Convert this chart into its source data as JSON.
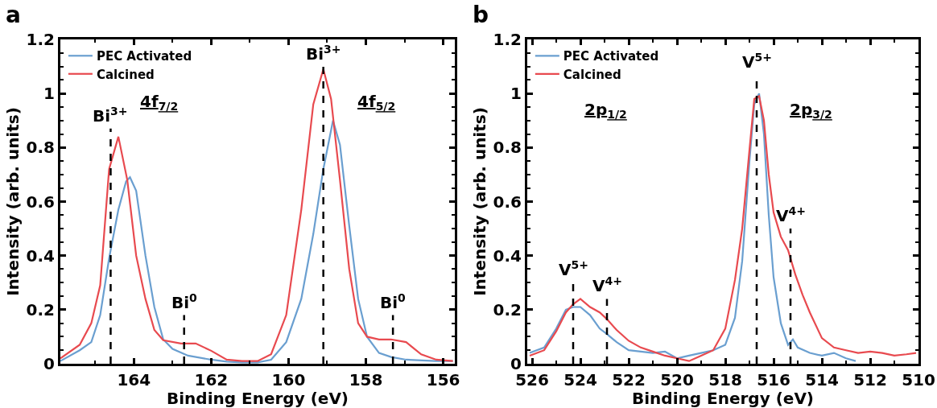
{
  "chart_data": [
    {
      "type": "line",
      "xlabel": "Binding Energy (eV)",
      "ylabel": "Intensity (arb. units)",
      "xlim": [
        165.9,
        155.7
      ],
      "ylim": [
        0,
        1.2
      ],
      "xticks": [
        164,
        162,
        160,
        158,
        156
      ],
      "yticks": [
        0,
        0.2,
        0.4,
        0.6,
        0.8,
        1,
        1.2
      ],
      "legend": "top left",
      "series": [
        {
          "name": "PEC Activated",
          "color": "#6a9fd0",
          "x": [
            165.9,
            165.4,
            165.1,
            164.87,
            164.64,
            164.4,
            164.2,
            164.1,
            163.94,
            163.7,
            163.47,
            163.24,
            163.0,
            162.6,
            162.0,
            161.6,
            161.2,
            160.8,
            160.45,
            160.06,
            159.67,
            159.36,
            159.1,
            158.85,
            158.67,
            158.43,
            158.2,
            157.97,
            157.66,
            157.35,
            156.96,
            156.2,
            155.75
          ],
          "values": [
            0.01,
            0.05,
            0.08,
            0.18,
            0.39,
            0.57,
            0.675,
            0.69,
            0.64,
            0.4,
            0.21,
            0.09,
            0.055,
            0.03,
            0.015,
            0.008,
            0.005,
            0.005,
            0.015,
            0.08,
            0.24,
            0.48,
            0.72,
            0.9,
            0.81,
            0.51,
            0.24,
            0.1,
            0.04,
            0.025,
            0.015,
            0.01,
            0.01
          ]
        },
        {
          "name": "Calcined",
          "color": "#e84a4f",
          "x": [
            165.9,
            165.4,
            165.1,
            164.87,
            164.64,
            164.4,
            164.17,
            163.94,
            163.7,
            163.47,
            163.24,
            162.78,
            162.4,
            162.0,
            161.6,
            161.2,
            160.8,
            160.45,
            160.06,
            159.67,
            159.36,
            159.1,
            158.9,
            158.67,
            158.43,
            158.2,
            157.97,
            157.66,
            157.35,
            156.96,
            156.57,
            156.18,
            155.75
          ],
          "values": [
            0.02,
            0.07,
            0.15,
            0.29,
            0.72,
            0.84,
            0.68,
            0.4,
            0.24,
            0.125,
            0.087,
            0.075,
            0.075,
            0.048,
            0.015,
            0.01,
            0.01,
            0.035,
            0.18,
            0.57,
            0.96,
            1.09,
            0.98,
            0.68,
            0.35,
            0.15,
            0.1,
            0.09,
            0.09,
            0.08,
            0.035,
            0.015,
            0.01
          ]
        }
      ],
      "ref_lines": [
        {
          "axis": "x",
          "value": 164.6,
          "color": "#000000",
          "line_style": "dashed"
        },
        {
          "axis": "x",
          "value": 162.7,
          "color": "#000000",
          "line_style": "dashed"
        },
        {
          "axis": "x",
          "value": 159.1,
          "color": "#000000",
          "line_style": "dashed"
        },
        {
          "axis": "x",
          "value": 157.3,
          "color": "#000000",
          "line_style": "dashed"
        }
      ],
      "annotations": [
        "a",
        {
          "text": "Bi$^{3+}$",
          "x": 164.6,
          "y": 0.87
        },
        {
          "text": "Bi$^{0}$",
          "x": 162.7,
          "y": 0.18
        },
        {
          "text": "Bi$^{3+}$",
          "x": 159.1,
          "y": 1.1
        },
        {
          "text": "Bi$^{0}$",
          "x": 157.3,
          "y": 0.18
        },
        "4f$_{7/2}$",
        "4f$_{5/2}$"
      ]
    },
    {
      "type": "line",
      "xlabel": "Binding Energy (eV)",
      "ylabel": "Intensity (arb. units)",
      "xlim": [
        526.2,
        510
      ],
      "ylim": [
        0,
        1.2
      ],
      "xticks": [
        526,
        524,
        522,
        520,
        518,
        516,
        514,
        512,
        510
      ],
      "yticks": [
        0,
        0.2,
        0.4,
        0.6,
        0.8,
        1,
        1.2
      ],
      "legend": "top left",
      "series": [
        {
          "name": "PEC Activated",
          "color": "#6a9fd0",
          "x": [
            526.1,
            525.5,
            525.0,
            524.6,
            524.3,
            524.0,
            523.6,
            523.2,
            522.9,
            522.5,
            522.0,
            521.5,
            521.0,
            520.5,
            520.0,
            519.5,
            519.0,
            518.5,
            518.0,
            517.6,
            517.3,
            517.0,
            516.8,
            516.6,
            516.4,
            516.2,
            516.0,
            515.7,
            515.4,
            515.2,
            515.0,
            514.5,
            514.0,
            513.5,
            513.0,
            512.6
          ],
          "values": [
            0.04,
            0.06,
            0.13,
            0.2,
            0.21,
            0.21,
            0.18,
            0.13,
            0.11,
            0.08,
            0.05,
            0.045,
            0.04,
            0.045,
            0.02,
            0.03,
            0.04,
            0.05,
            0.07,
            0.17,
            0.38,
            0.75,
            0.96,
            1.0,
            0.85,
            0.55,
            0.32,
            0.15,
            0.07,
            0.09,
            0.06,
            0.04,
            0.03,
            0.04,
            0.02,
            0.01
          ]
        },
        {
          "name": "Calcined",
          "color": "#e84a4f",
          "x": [
            526.1,
            525.5,
            525.0,
            524.6,
            524.3,
            524.0,
            523.6,
            523.2,
            522.9,
            522.5,
            522.0,
            521.5,
            521.0,
            520.5,
            520.0,
            519.5,
            519.0,
            518.5,
            518.0,
            517.6,
            517.3,
            517.0,
            516.8,
            516.6,
            516.4,
            516.2,
            516.0,
            515.7,
            515.4,
            515.1,
            514.8,
            514.5,
            514.0,
            513.5,
            513.0,
            512.5,
            512.0,
            511.5,
            511.0,
            510.5,
            510.1
          ],
          "values": [
            0.03,
            0.05,
            0.12,
            0.19,
            0.22,
            0.24,
            0.21,
            0.19,
            0.165,
            0.125,
            0.085,
            0.06,
            0.045,
            0.03,
            0.02,
            0.01,
            0.03,
            0.05,
            0.13,
            0.31,
            0.5,
            0.79,
            0.98,
            0.99,
            0.9,
            0.7,
            0.56,
            0.47,
            0.42,
            0.33,
            0.255,
            0.19,
            0.095,
            0.06,
            0.05,
            0.04,
            0.045,
            0.04,
            0.03,
            0.035,
            0.04
          ]
        }
      ],
      "ref_lines": [
        {
          "axis": "x",
          "value": 524.3,
          "color": "#000000",
          "line_style": "dashed"
        },
        {
          "axis": "x",
          "value": 522.9,
          "color": "#000000",
          "line_style": "dashed"
        },
        {
          "axis": "x",
          "value": 516.7,
          "color": "#000000",
          "line_style": "dashed"
        },
        {
          "axis": "x",
          "value": 515.3,
          "color": "#000000",
          "line_style": "dashed"
        }
      ],
      "annotations": [
        "b",
        {
          "text": "V$^{5+}$",
          "x": 524.3,
          "y": 0.3
        },
        {
          "text": "V$^{4+}$",
          "x": 522.9,
          "y": 0.24
        },
        {
          "text": "V$^{5+}$",
          "x": 516.7,
          "y": 1.07
        },
        {
          "text": "V$^{4+}$",
          "x": 515.3,
          "y": 0.5
        },
        "2p$_{1/2}$",
        "2p$_{3/2}$"
      ]
    }
  ]
}
